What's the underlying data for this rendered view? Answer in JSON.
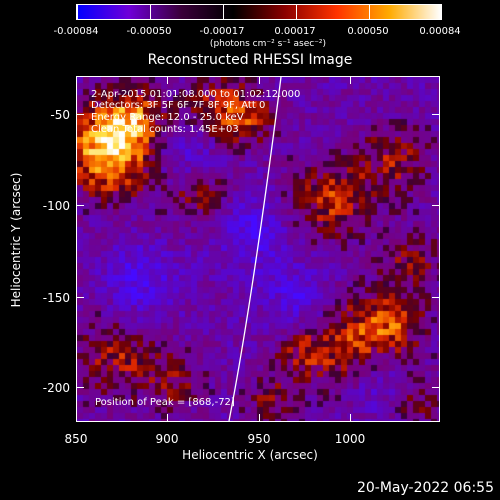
{
  "colorbar": {
    "gradient_colors": [
      "#0000ff",
      "#6f00d8",
      "#3a003a",
      "#000000",
      "#8b0000",
      "#ff3300",
      "#ffaa00",
      "#ffffff"
    ],
    "tick_labels": [
      "-0.00084",
      "-0.00050",
      "-0.00017",
      "0.00017",
      "0.00050",
      "0.00084"
    ],
    "unit": "(photons cm⁻² s⁻¹ asec⁻²)"
  },
  "title": "Reconstructed RHESSI Image",
  "info": {
    "time_range": "2-Apr-2015 01:01:08.000 to 01:02:12.000",
    "detectors": "Detectors: 3F 5F 6F 7F 8F 9F, Att 0",
    "energy": "Energy Range: 12.0 - 25.0 keV",
    "clean": "Clean    Total counts: 1.45E+03",
    "peak": "Position of Peak = [868,-72]"
  },
  "axes": {
    "xlabel": "Heliocentric X (arcsec)",
    "ylabel": "Heliocentric Y (arcsec)",
    "x_ticks": [
      "850",
      "900",
      "950",
      "1000"
    ],
    "y_ticks": [
      "-50",
      "-100",
      "-150",
      "-200"
    ],
    "xlim": [
      850,
      1040
    ],
    "ylim": [
      -222,
      -29
    ]
  },
  "footer": "20-May-2022 06:55"
}
